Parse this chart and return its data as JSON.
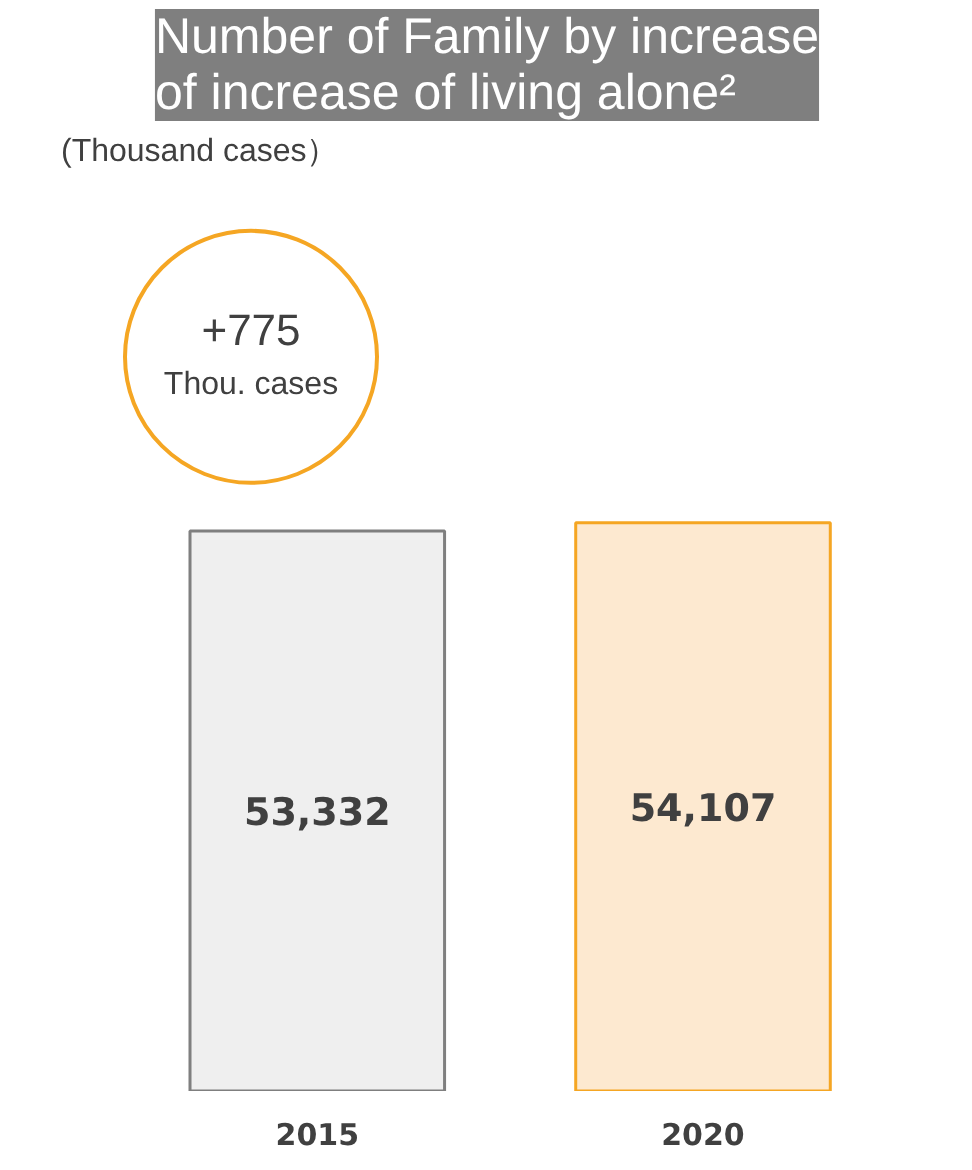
{
  "chart_data": {
    "type": "bar",
    "title": "Number of Family by increase\nof increase of living alone²",
    "categories": [
      "2015",
      "2020"
    ],
    "values": [
      53332,
      54107
    ],
    "colors": [
      "#efefef",
      "#fde9d0"
    ],
    "value_labels": [
      "53,332",
      "54,107"
    ],
    "tick_labels": "x",
    "grid": false,
    "annotations": [
      "(Thousand cases）",
      "+775\nThou. cases"
    ]
  }
}
